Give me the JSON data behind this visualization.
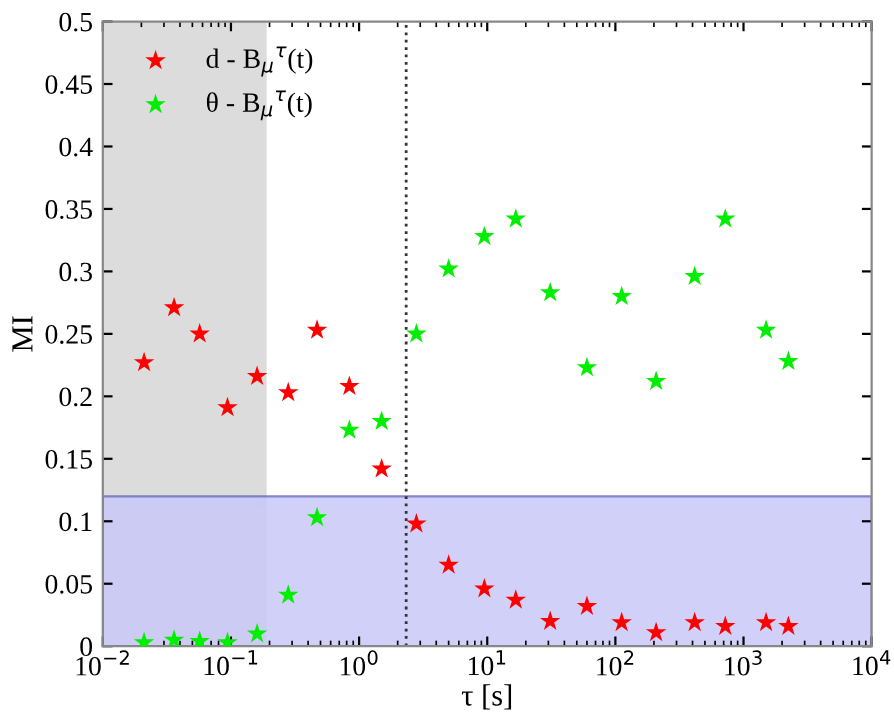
{
  "chart_data": {
    "type": "scatter",
    "xlabel": "τ [s]",
    "ylabel": "MI",
    "x": [
      0.021,
      0.036,
      0.057,
      0.094,
      0.16,
      0.28,
      0.47,
      0.84,
      1.5,
      2.8,
      5.0,
      9.5,
      16.7,
      31,
      60,
      112,
      208,
      416,
      721,
      1500,
      2240
    ],
    "series": [
      {
        "name": "d - B$_{μ}$$^{τ}$(t)",
        "color": "#ff0000",
        "values": [
          0.227,
          0.271,
          0.25,
          0.191,
          0.216,
          0.203,
          0.253,
          0.208,
          0.142,
          0.098,
          0.065,
          0.046,
          0.037,
          0.02,
          0.032,
          0.019,
          0.011,
          0.019,
          0.016,
          0.019,
          0.016
        ]
      },
      {
        "name": "θ - B$_{μ}$$^{τ}$(t)",
        "color": "#00ee00",
        "values": [
          0.003,
          0.005,
          0.004,
          0.003,
          0.01,
          0.041,
          0.103,
          0.173,
          0.18,
          0.25,
          0.302,
          0.328,
          0.342,
          0.283,
          0.223,
          0.28,
          0.212,
          0.296,
          0.342,
          0.253,
          0.228
        ]
      }
    ],
    "log": "x",
    "xlim": [
      0.01,
      10000
    ],
    "xticks": [
      {
        "value": 0.01,
        "label": "10$^{−2}$"
      },
      {
        "value": 0.1,
        "label": "10$^{−1}$"
      },
      {
        "value": 1,
        "label": "10$^{0}$"
      },
      {
        "value": 10,
        "label": "10$^{1}$"
      },
      {
        "value": 100,
        "label": "10$^{2}$"
      },
      {
        "value": 1000,
        "label": "10$^{3}$"
      },
      {
        "value": 10000,
        "label": "10$^{4}$"
      }
    ],
    "ylim": [
      0,
      0.5
    ],
    "yticks": [
      0,
      0.05,
      0.1,
      0.15,
      0.2,
      0.25,
      0.3,
      0.35,
      0.4,
      0.45,
      0.5
    ],
    "ref_lines": [
      {
        "axis": "x",
        "value": 2.33,
        "color": "#333333",
        "line_style": "dotted"
      }
    ],
    "bands": [
      {
        "axis": "x",
        "from": 0.01,
        "to": 0.19,
        "color": "#dcdcdc"
      },
      {
        "axis": "y",
        "from": 0,
        "to": 0.12,
        "color": "#c8c8f8"
      }
    ],
    "marker": "star",
    "legend": "top left",
    "grid": false
  }
}
